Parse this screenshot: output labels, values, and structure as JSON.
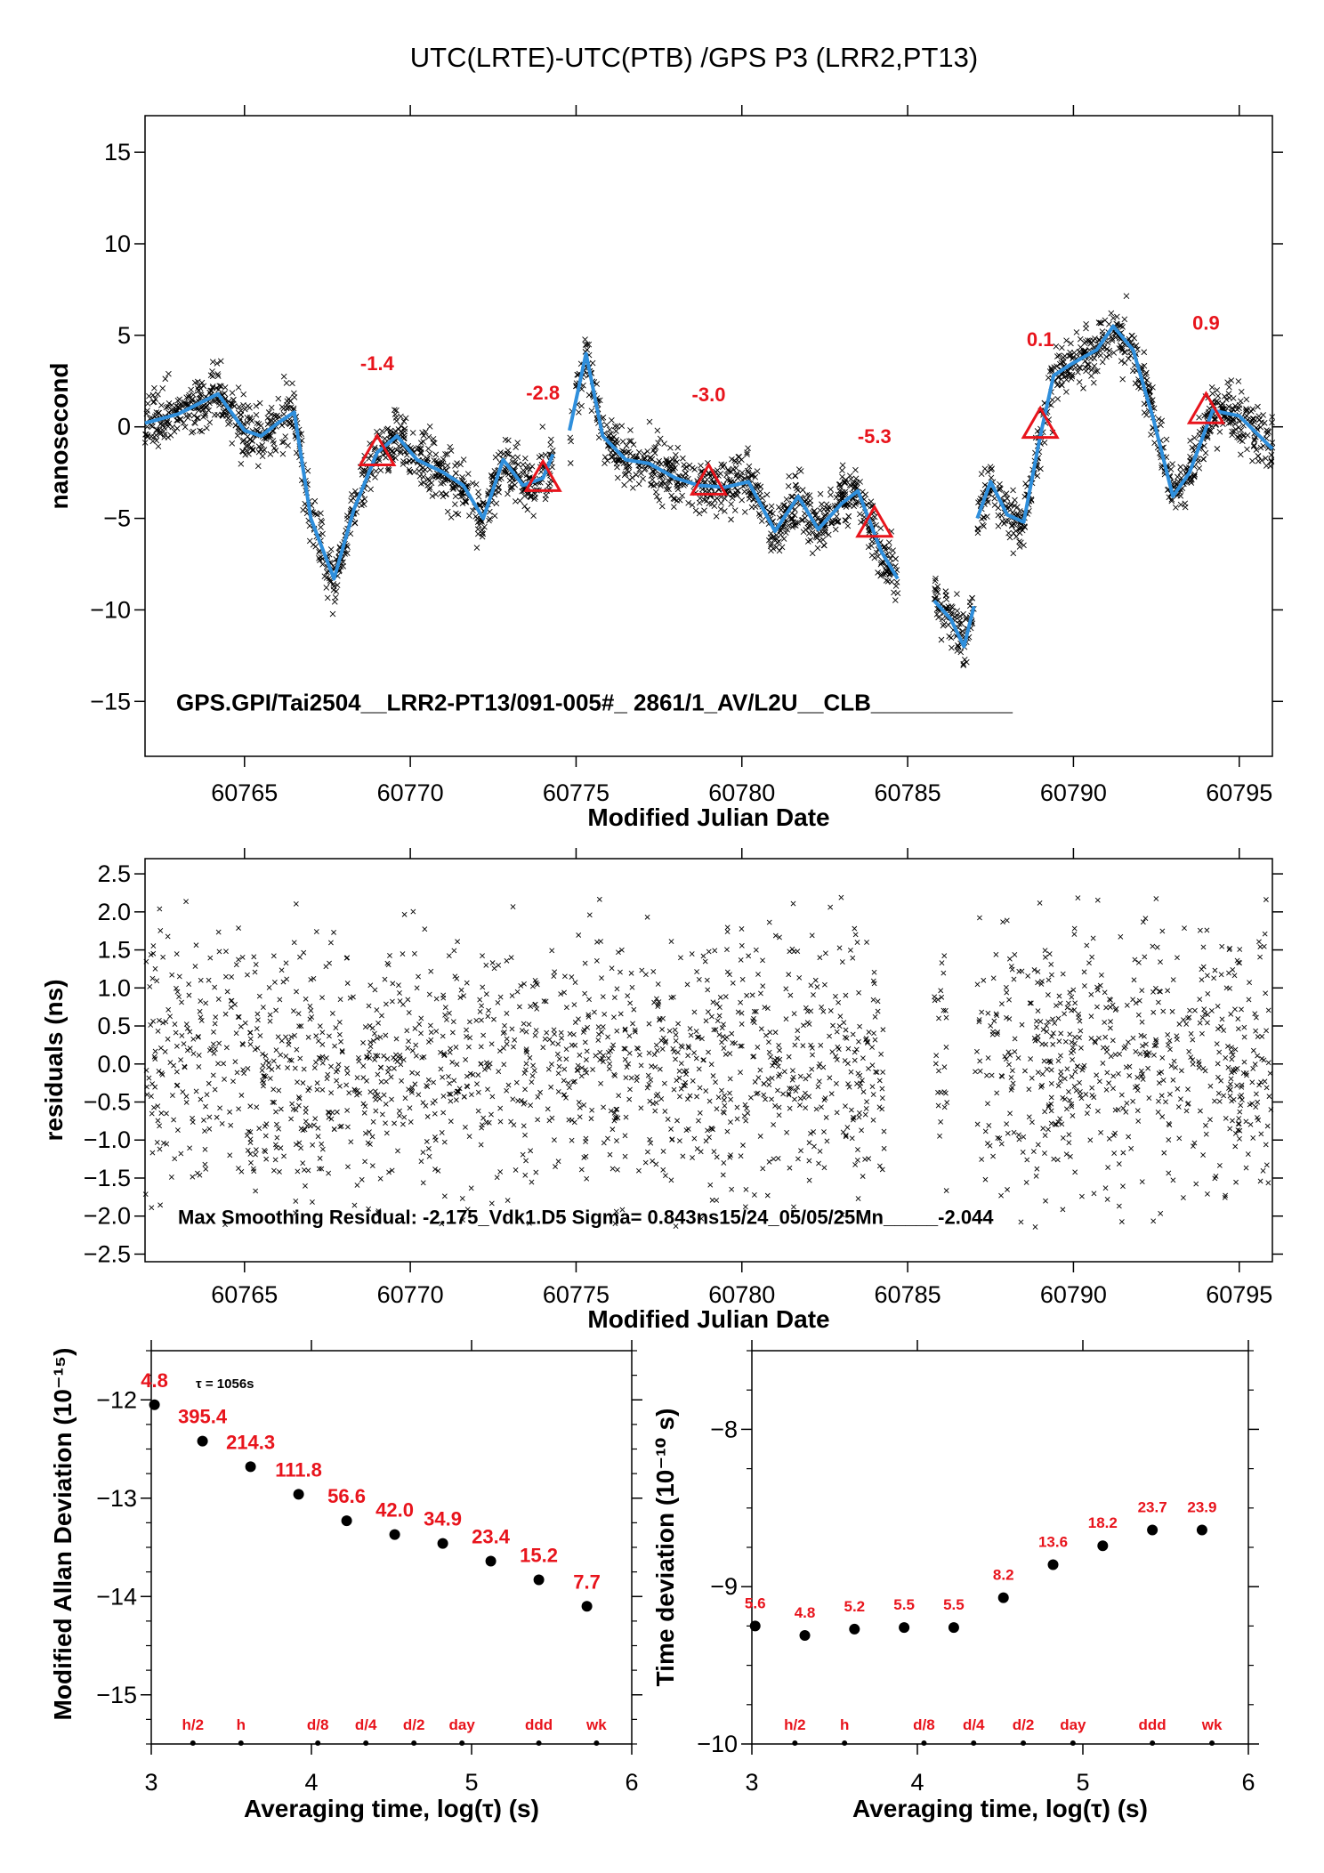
{
  "title": "UTC(LRTE)-UTC(PTB)  /GPS  P3  (LRR2,PT13)",
  "chart_data": [
    {
      "type": "scatter",
      "xlabel": "Modified Julian Date",
      "ylabel": "nanosecond",
      "xlim": [
        60762,
        60796
      ],
      "ylim": [
        -18,
        17
      ],
      "xticks": [
        "60765",
        "60770",
        "60775",
        "60780",
        "60785",
        "60790",
        "60795"
      ],
      "yticks": [
        "15",
        "10",
        "5",
        "0",
        "−5",
        "−10",
        "−15"
      ],
      "caption": "GPS.GPI/Tai2504__LRR2-PT13/091-005#_  2861/1_AV/L2U__CLB___________",
      "series": [
        {
          "marker": "x",
          "color": "#000000",
          "segments": [
            {
              "x": [
                60762.0,
                60763.0,
                60764.2,
                60765.0,
                60765.5,
                60766.0,
                60766.5,
                60767.0,
                60767.7,
                60768.3,
                60769.0,
                60769.6,
                60770.2,
                60771.0,
                60771.6,
                60772.2,
                60772.8,
                60773.4,
                60774.0,
                60774.3
              ],
              "y": [
                0.2,
                0.7,
                1.8,
                -0.2,
                -0.5,
                0.2,
                0.8,
                -5.0,
                -8.3,
                -4.5,
                -1.4,
                -0.5,
                -1.8,
                -2.5,
                -3.2,
                -5.0,
                -1.8,
                -3.2,
                -2.8,
                -1.5
              ]
            },
            {
              "x": [
                60774.8,
                60775.3,
                60775.8,
                60776.5,
                60777.2,
                60778.0,
                60778.7,
                60779.5,
                60780.2,
                60781.0,
                60781.7,
                60782.3,
                60783.0,
                60783.5,
                60784.2,
                60784.7
              ],
              "y": [
                -0.2,
                4.0,
                -0.5,
                -1.8,
                -2.0,
                -2.8,
                -3.2,
                -3.3,
                -3.0,
                -5.7,
                -3.8,
                -5.6,
                -4.2,
                -3.5,
                -6.8,
                -8.3
              ]
            },
            {
              "x": [
                60785.8,
                60786.3,
                60786.7,
                60787.0
              ],
              "y": [
                -9.5,
                -10.5,
                -12.0,
                -9.8
              ]
            },
            {
              "x": [
                60787.1,
                60787.5,
                60788.0,
                60788.5,
                60789.0,
                60789.4,
                60790.0,
                60790.7,
                60791.2,
                60791.8,
                60792.4,
                60793.0,
                60793.5,
                60794.2,
                60795.0,
                60796.0
              ],
              "y": [
                -5.0,
                -3.0,
                -4.8,
                -5.2,
                -0.5,
                2.8,
                3.5,
                4.2,
                5.5,
                4.2,
                0.5,
                -3.8,
                -2.5,
                0.9,
                0.6,
                -1.2
              ]
            }
          ]
        },
        {
          "marker": "line",
          "color": "#2f8fdc",
          "segments": [
            {
              "x": [
                60762.0,
                60763.0,
                60764.2,
                60765.0,
                60765.5,
                60766.0,
                60766.5,
                60767.0,
                60767.7,
                60768.3,
                60769.0,
                60769.6,
                60770.2,
                60771.0,
                60771.6,
                60772.2,
                60772.8,
                60773.4,
                60774.0,
                60774.3
              ],
              "y": [
                0.2,
                0.7,
                1.8,
                -0.2,
                -0.5,
                0.2,
                0.8,
                -5.0,
                -8.3,
                -4.5,
                -1.4,
                -0.5,
                -1.8,
                -2.5,
                -3.2,
                -5.0,
                -1.8,
                -3.2,
                -2.8,
                -1.5
              ]
            },
            {
              "x": [
                60774.8,
                60775.3,
                60775.8,
                60776.5,
                60777.2,
                60778.0,
                60778.7,
                60779.5,
                60780.2,
                60781.0,
                60781.7,
                60782.3,
                60783.0,
                60783.5,
                60784.2,
                60784.7
              ],
              "y": [
                -0.2,
                4.0,
                -0.5,
                -1.8,
                -2.0,
                -2.8,
                -3.2,
                -3.3,
                -3.0,
                -5.7,
                -3.8,
                -5.6,
                -4.2,
                -3.5,
                -6.8,
                -8.3
              ]
            },
            {
              "x": [
                60785.8,
                60786.3,
                60786.7,
                60787.0
              ],
              "y": [
                -9.5,
                -10.5,
                -12.0,
                -9.8
              ]
            },
            {
              "x": [
                60787.1,
                60787.5,
                60788.0,
                60788.5,
                60789.0,
                60789.4,
                60790.0,
                60790.7,
                60791.2,
                60791.8,
                60792.4,
                60793.0,
                60793.5,
                60794.2,
                60795.0,
                60796.0
              ],
              "y": [
                -5.0,
                -3.0,
                -4.8,
                -5.2,
                -0.5,
                2.8,
                3.5,
                4.2,
                5.5,
                4.2,
                0.5,
                -3.8,
                -2.5,
                0.9,
                0.6,
                -1.2
              ]
            }
          ]
        }
      ],
      "markers": [
        {
          "shape": "triangle",
          "color": "#e8141c",
          "x": 60769.0,
          "y": -1.4,
          "label": "-1.4",
          "label_y": 3.1
        },
        {
          "shape": "triangle",
          "color": "#e8141c",
          "x": 60774.0,
          "y": -2.8,
          "label": "-2.8",
          "label_y": 1.5
        },
        {
          "shape": "triangle",
          "color": "#e8141c",
          "x": 60779.0,
          "y": -3.0,
          "label": "-3.0",
          "label_y": 1.4
        },
        {
          "shape": "triangle",
          "color": "#e8141c",
          "x": 60784.0,
          "y": -5.3,
          "label": "-5.3",
          "label_y": -0.9
        },
        {
          "shape": "triangle",
          "color": "#e8141c",
          "x": 60789.0,
          "y": 0.1,
          "label": "0.1",
          "label_y": 4.4
        },
        {
          "shape": "triangle",
          "color": "#e8141c",
          "x": 60794.0,
          "y": 0.9,
          "label": "0.9",
          "label_y": 5.3
        }
      ]
    },
    {
      "type": "scatter",
      "xlabel": "Modified Julian Date",
      "ylabel": "residuals (ns)",
      "xlim": [
        60762,
        60796
      ],
      "ylim": [
        -2.6,
        2.7
      ],
      "xticks": [
        "60765",
        "60770",
        "60775",
        "60780",
        "60785",
        "60790",
        "60795"
      ],
      "yticks": [
        "2.5",
        "2.0",
        "1.5",
        "1.0",
        "0.5",
        "0.0",
        "−0.5",
        "−1.0",
        "−1.5",
        "−2.0",
        "−2.5"
      ],
      "caption": "Max Smoothing Residual: -2.175_Vdk1.D5  Sigma= 0.843ns15/24_05/05/25Mn_____-2.044",
      "noise": {
        "sigma": 0.843,
        "color": "#000000",
        "marker": "x"
      },
      "gaps": [
        [
          60784.3,
          60785.8
        ],
        [
          60786.2,
          60787.0
        ]
      ]
    },
    {
      "type": "scatter",
      "xlabel": "Averaging time, log(τ) (s)",
      "ylabel": "Modified Allan Deviation (10⁻¹⁵)",
      "xlim": [
        3,
        6
      ],
      "ylim": [
        -15.5,
        -11.5
      ],
      "xticks": [
        "3",
        "4",
        "5",
        "6"
      ],
      "yticks": [
        "−12",
        "−13",
        "−14",
        "−15"
      ],
      "note": "τ = 1056s",
      "series": [
        {
          "marker": "circle",
          "color": "#000000",
          "x": [
            3.02,
            3.32,
            3.62,
            3.92,
            4.22,
            4.52,
            4.82,
            5.12,
            5.42,
            5.72
          ],
          "y": [
            -12.05,
            -12.42,
            -12.68,
            -12.96,
            -13.23,
            -13.37,
            -13.46,
            -13.64,
            -13.83,
            -14.1
          ],
          "labels": [
            "4.8",
            "395.4",
            "214.3",
            "111.8",
            "56.6",
            "42.0",
            "34.9",
            "23.4",
            "15.2",
            "7.7"
          ]
        },
        {
          "marker": "dot",
          "color": "#000000",
          "x": [
            3.26,
            3.56,
            4.04,
            4.34,
            4.64,
            4.94,
            5.42,
            5.78
          ],
          "labels": [
            "h/2",
            "h",
            "d/8",
            "d/4",
            "d/2",
            "day",
            "ddd",
            "wk"
          ]
        }
      ]
    },
    {
      "type": "scatter",
      "xlabel": "Averaging time, log(τ) (s)",
      "ylabel": "Time deviation (10⁻¹⁰ s)",
      "xlim": [
        3,
        6
      ],
      "ylim": [
        -10,
        -7.5
      ],
      "xticks": [
        "3",
        "4",
        "5",
        "6"
      ],
      "yticks": [
        "−8",
        "−9",
        "−10"
      ],
      "series": [
        {
          "marker": "circle",
          "color": "#000000",
          "x": [
            3.02,
            3.32,
            3.62,
            3.92,
            4.22,
            4.52,
            4.82,
            5.12,
            5.42,
            5.72
          ],
          "y": [
            -9.25,
            -9.31,
            -9.27,
            -9.26,
            -9.26,
            -9.07,
            -8.86,
            -8.74,
            -8.64,
            -8.64
          ],
          "labels": [
            "5.6",
            "4.8",
            "5.2",
            "5.5",
            "5.5",
            "8.2",
            "13.6",
            "18.2",
            "23.7",
            "23.9"
          ]
        },
        {
          "marker": "dot",
          "color": "#000000",
          "x": [
            3.26,
            3.56,
            4.04,
            4.34,
            4.64,
            4.94,
            5.42,
            5.78
          ],
          "labels": [
            "h/2",
            "h",
            "d/8",
            "d/4",
            "d/2",
            "day",
            "ddd",
            "wk"
          ]
        }
      ]
    }
  ]
}
